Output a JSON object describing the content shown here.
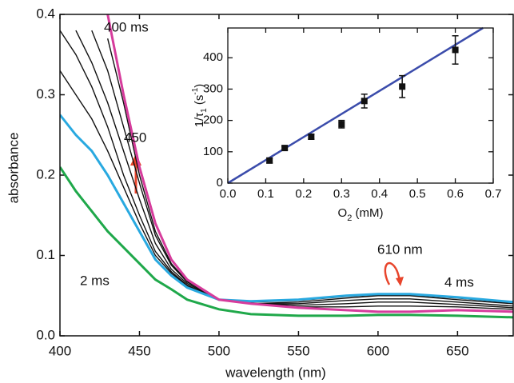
{
  "chart_data": [
    {
      "type": "line",
      "xlabel": "wavelength (nm)",
      "ylabel": "absorbance",
      "x": [
        400,
        410,
        420,
        430,
        440,
        450,
        460,
        470,
        480,
        500,
        520,
        550,
        580,
        600,
        620,
        650,
        685
      ],
      "xlim": [
        400,
        685
      ],
      "xticks": [
        400,
        450,
        500,
        550,
        600,
        650
      ],
      "ylim": [
        0,
        0.4
      ],
      "yticks": [
        {
          "value": 0,
          "label": "0.0"
        },
        0.1,
        0.2,
        0.3,
        0.4
      ],
      "series": [
        {
          "color": "#111111",
          "values": [
            0.33,
            0.3,
            0.27,
            0.23,
            0.185,
            0.14,
            0.1,
            0.078,
            0.062,
            0.045,
            0.042,
            0.044,
            0.049,
            0.051,
            0.051,
            0.047,
            0.041
          ]
        },
        {
          "color": "#111111",
          "values": [
            0.38,
            0.35,
            0.31,
            0.26,
            0.2,
            0.15,
            0.105,
            0.08,
            0.063,
            0.045,
            0.04,
            0.042,
            0.047,
            0.05,
            0.05,
            0.045,
            0.04
          ]
        },
        {
          "color": "#111111",
          "values": [
            null,
            0.38,
            0.34,
            0.29,
            0.23,
            0.17,
            0.115,
            0.083,
            0.065,
            0.045,
            0.04,
            0.04,
            0.044,
            0.046,
            0.046,
            0.042,
            0.037
          ]
        },
        {
          "color": "#111111",
          "values": [
            null,
            null,
            0.38,
            0.33,
            0.26,
            0.19,
            0.125,
            0.088,
            0.067,
            0.045,
            0.04,
            0.038,
            0.04,
            0.042,
            0.042,
            0.039,
            0.035
          ]
        },
        {
          "color": "#111111",
          "values": [
            null,
            null,
            null,
            0.37,
            0.29,
            0.2,
            0.13,
            0.09,
            0.068,
            0.045,
            0.04,
            0.036,
            0.036,
            0.037,
            0.037,
            0.036,
            0.033
          ]
        },
        {
          "name": "2 ms",
          "color": "#1fa84a",
          "values": [
            0.21,
            0.18,
            0.155,
            0.13,
            0.11,
            0.09,
            0.07,
            0.058,
            0.045,
            0.033,
            0.027,
            0.025,
            0.025,
            0.026,
            0.026,
            0.025,
            0.023
          ]
        },
        {
          "name": "4 ms",
          "color": "#29a9e0",
          "values": [
            0.275,
            0.25,
            0.23,
            0.2,
            0.165,
            0.13,
            0.095,
            0.075,
            0.06,
            0.045,
            0.043,
            0.045,
            0.05,
            0.052,
            0.052,
            0.048,
            0.042
          ]
        },
        {
          "name": "400 ms",
          "color": "#d63c9c",
          "values": [
            null,
            null,
            null,
            0.4,
            0.3,
            0.21,
            0.14,
            0.095,
            0.07,
            0.045,
            0.04,
            0.035,
            0.032,
            0.03,
            0.03,
            0.032,
            0.03
          ]
        }
      ],
      "annotations": [
        "450",
        "610 nm"
      ]
    },
    {
      "type": "scatter",
      "xlabel_parts": [
        "O",
        "2",
        " (mM)"
      ],
      "ylabel_parts": [
        "1/τ",
        "1",
        " (s",
        "-1",
        ")"
      ],
      "x": [
        0.11,
        0.15,
        0.22,
        0.3,
        0.36,
        0.46,
        0.6
      ],
      "values": [
        72,
        112,
        148,
        188,
        262,
        308,
        425
      ],
      "errors": [
        8,
        6,
        8,
        12,
        22,
        35,
        45
      ],
      "color": "#111111",
      "xlim": [
        0,
        0.7
      ],
      "xticks": [
        {
          "value": 0,
          "label": "0.0"
        },
        0.1,
        0.2,
        0.3,
        0.4,
        0.5,
        0.6,
        0.7
      ],
      "ylim": [
        0,
        495
      ],
      "yticks": [
        0,
        100,
        200,
        300,
        400
      ],
      "fit": {
        "color": "#3b4cab",
        "x": [
          0,
          0.673
        ],
        "values": [
          0,
          495
        ]
      }
    }
  ]
}
